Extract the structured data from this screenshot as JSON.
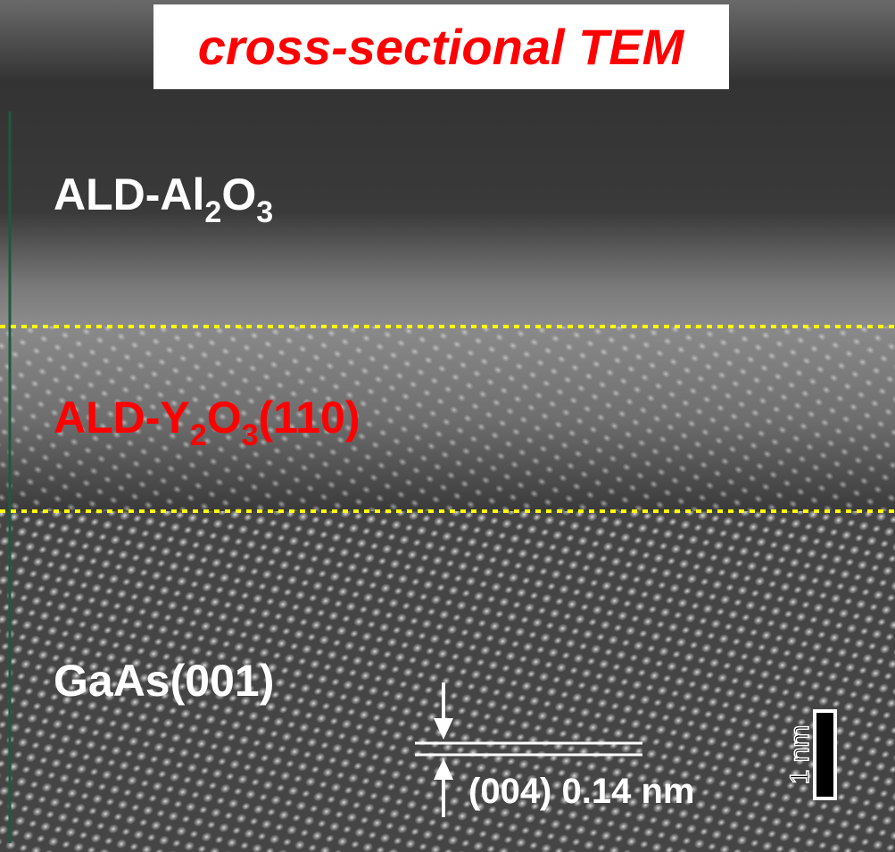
{
  "title": "cross-sectional TEM",
  "layers": [
    {
      "parts": [
        {
          "text": "ALD-Al"
        },
        {
          "text": "2",
          "sub": true
        },
        {
          "text": "O"
        },
        {
          "text": "3",
          "sub": true
        }
      ]
    },
    {
      "parts": [
        {
          "text": "ALD-Y"
        },
        {
          "text": "2",
          "sub": true
        },
        {
          "text": "O"
        },
        {
          "text": "3",
          "sub": true
        },
        {
          "text": "(110)"
        }
      ]
    },
    {
      "parts": [
        {
          "text": "GaAs(001)"
        }
      ]
    }
  ],
  "spacing_label": "(004) 0.14 nm",
  "scale_bar_label": "1 nm"
}
